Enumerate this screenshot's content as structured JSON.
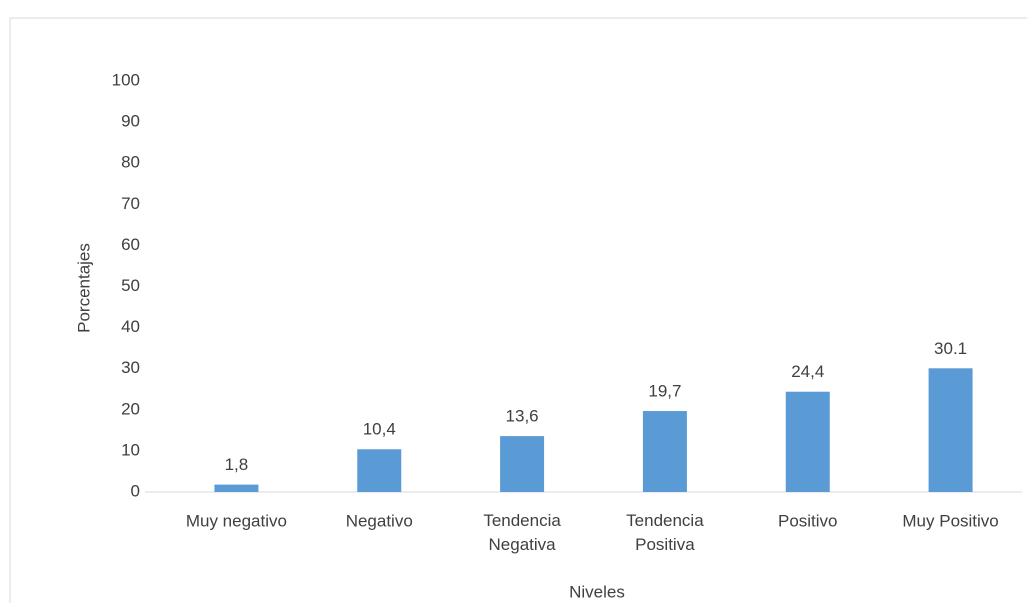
{
  "chart_data": {
    "type": "bar",
    "x_label": "Niveles",
    "y_label": "Porcentajes",
    "categories": [
      "Muy negativo",
      "Negativo",
      "Tendencia Negativa",
      "Tendencia Positiva",
      "Positivo",
      "Muy Positivo"
    ],
    "values": [
      1.8,
      10.4,
      13.6,
      19.7,
      24.4,
      30.1
    ],
    "value_labels": [
      "1,8",
      "10,4",
      "13,6",
      "19,7",
      "24,4",
      "30.1"
    ],
    "color": "#5b9bd5",
    "ylim": [
      0,
      100
    ],
    "yticks": [
      0,
      10,
      20,
      30,
      40,
      50,
      60,
      70,
      80,
      90,
      100
    ],
    "grid": false
  }
}
